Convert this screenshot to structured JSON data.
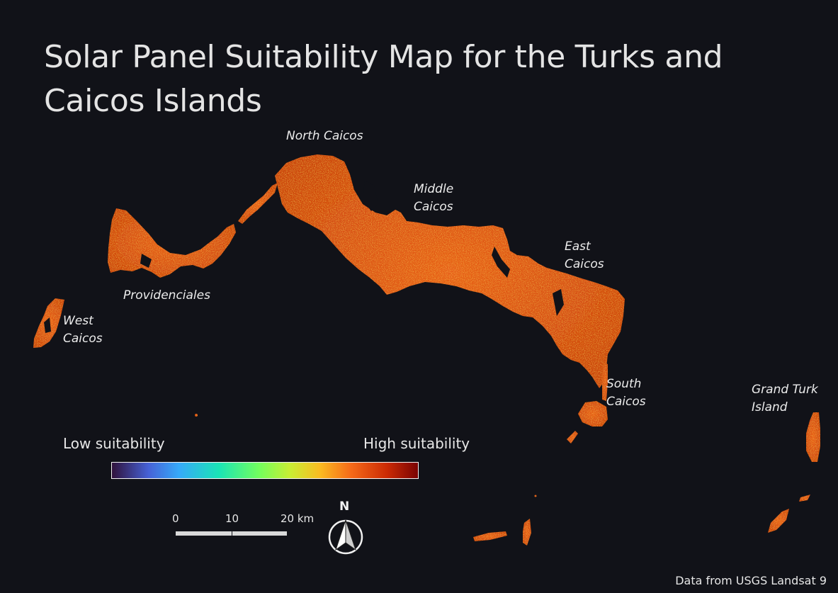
{
  "title": {
    "line1": "Solar Panel Suitability Map for the Turks and",
    "line2": "Caicos Islands"
  },
  "places": {
    "north_caicos": "North Caicos",
    "middle_caicos_1": "Middle",
    "middle_caicos_2": "Caicos",
    "east_caicos_1": "East",
    "east_caicos_2": "Caicos",
    "providenciales": "Providenciales",
    "west_caicos_1": "West",
    "west_caicos_2": "Caicos",
    "south_caicos_1": "South",
    "south_caicos_2": "Caicos",
    "grand_turk_1": "Grand Turk",
    "grand_turk_2": "Island"
  },
  "legend": {
    "low_label": "Low suitability",
    "high_label": "High suitability",
    "ramp_colors": [
      "#30123b",
      "#4662d7",
      "#36aaf9",
      "#1ae4b6",
      "#72fe5e",
      "#c7ef34",
      "#fabb21",
      "#f66b19",
      "#ca2a04",
      "#7a0403"
    ]
  },
  "scale_bar": {
    "ticks": [
      "0",
      "10",
      "20 km"
    ]
  },
  "north_arrow": {
    "label": "N"
  },
  "credit": "Data from USGS Landsat 9",
  "colors": {
    "background": "#111218",
    "land_base": "#e0520e",
    "land_highlight": "#f2a21c",
    "land_dark": "#a8230a"
  }
}
